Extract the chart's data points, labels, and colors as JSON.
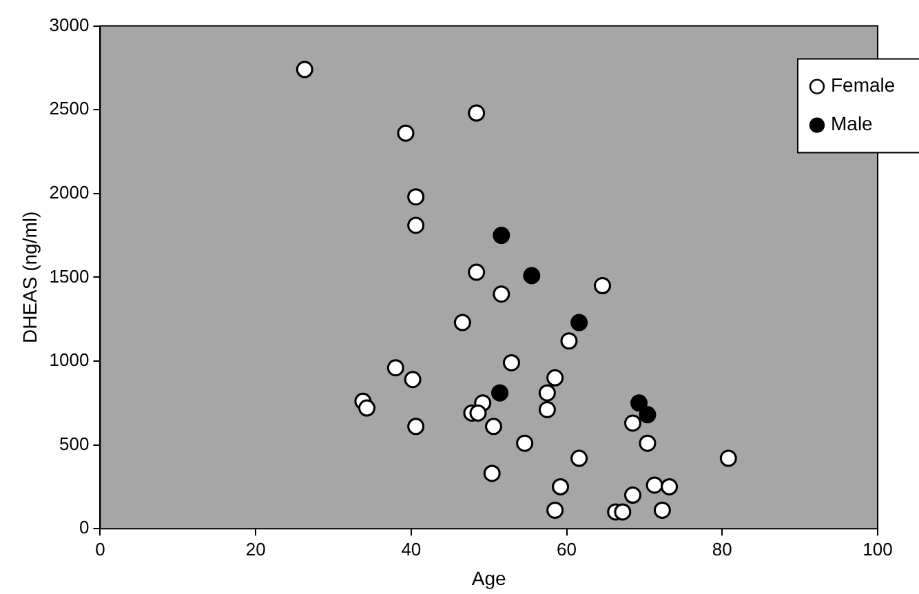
{
  "chart_data": {
    "type": "scatter",
    "xlabel": "Age",
    "ylabel": "DHEAS (ng/ml)",
    "xlim": [
      0,
      100
    ],
    "xticks": [
      0,
      20,
      40,
      60,
      80,
      100
    ],
    "ylim": [
      0,
      3000
    ],
    "yticks": [
      0,
      500,
      1000,
      1500,
      2000,
      2500,
      3000
    ],
    "legend": "top right",
    "marker": "circle",
    "series": [
      {
        "name": "Female",
        "color": "#ffffff",
        "x": [
          26.3,
          39.3,
          40.6,
          40.6,
          48.4,
          48.4,
          51.6,
          64.6,
          46.6,
          60.3,
          52.9,
          38.0,
          40.2,
          58.5,
          57.5,
          33.8,
          34.3,
          49.2,
          47.8,
          48.6,
          57.5,
          40.6,
          50.6,
          68.5,
          54.6,
          70.4,
          61.6,
          50.4,
          59.2,
          71.3,
          73.2,
          68.5,
          58.5,
          66.3,
          67.2,
          72.3,
          80.8
        ],
        "values": [
          2740,
          2360,
          1980,
          1810,
          2480,
          1530,
          1400,
          1450,
          1230,
          1120,
          990,
          960,
          890,
          900,
          810,
          760,
          720,
          750,
          690,
          690,
          710,
          610,
          610,
          630,
          510,
          510,
          420,
          330,
          250,
          260,
          250,
          200,
          110,
          100,
          100,
          110,
          420
        ]
      },
      {
        "name": "Male",
        "color": "#000000",
        "x": [
          51.6,
          55.5,
          61.6,
          51.4,
          69.3,
          70.4
        ],
        "values": [
          1750,
          1510,
          1230,
          810,
          750,
          680
        ]
      }
    ]
  }
}
